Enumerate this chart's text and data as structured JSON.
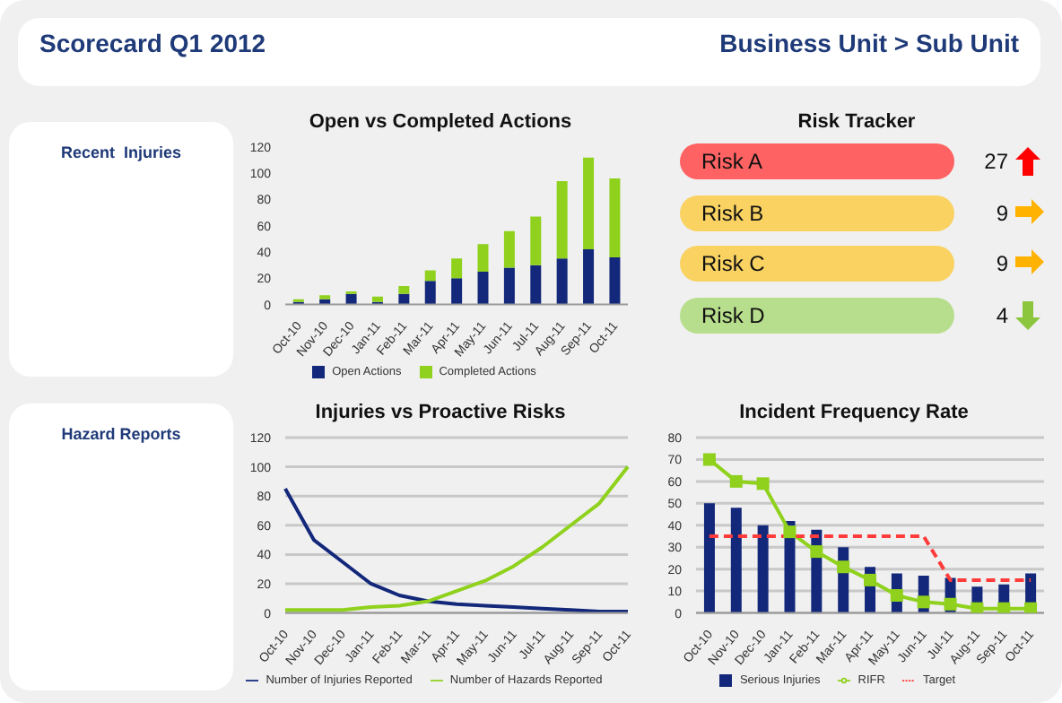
{
  "chart_data": [
    {
      "type": "other",
      "title": "Scorecard Q1 2012",
      "subtitle": "Business Unit > Sub Unit"
    },
    {
      "type": "other",
      "title": "Recent  Injuries"
    },
    {
      "type": "bar",
      "title": "Open vs Completed Actions",
      "stacked": true,
      "legend": "bottom",
      "categories": [
        "Oct-10",
        "Nov-10",
        "Dec-10",
        "Jan-11",
        "Feb-11",
        "Mar-11",
        "Apr-11",
        "May-11",
        "Jun-11",
        "Jul-11",
        "Aug-11",
        "Sep-11",
        "Oct-11"
      ],
      "ylim": [
        0,
        120
      ],
      "yticks": [
        0,
        20,
        40,
        60,
        80,
        100,
        120
      ],
      "series": [
        {
          "name": "Open Actions",
          "color": "#13287a",
          "values": [
            2,
            4,
            8,
            2,
            8,
            18,
            20,
            25,
            28,
            30,
            35,
            42,
            36
          ]
        },
        {
          "name": "Completed Actions",
          "color": "#8fd11c",
          "values": [
            2,
            3,
            2,
            4,
            6,
            8,
            15,
            21,
            28,
            37,
            59,
            70,
            60
          ]
        }
      ]
    },
    {
      "type": "other",
      "title": "Risk Tracker",
      "categories": [
        "Risk A",
        "Risk B",
        "Risk C",
        "Risk D"
      ],
      "values": [
        27,
        9,
        9,
        4
      ],
      "data_labels": true,
      "colors": [
        "#ff6262",
        "#f9d262",
        "#f9d262",
        "#b7de8c"
      ]
    },
    {
      "type": "other",
      "title": "Hazard Reports"
    },
    {
      "type": "line",
      "title": "Injuries vs Proactive Risks",
      "legend": "bottom",
      "grid": "y",
      "marker": "none",
      "categories": [
        "Oct-10",
        "Nov-10",
        "Dec-10",
        "Jan-11",
        "Feb-11",
        "Mar-11",
        "Apr-11",
        "May-11",
        "Jun-11",
        "Jul-11",
        "Aug-11",
        "Sep-11",
        "Oct-11"
      ],
      "ylim": [
        0,
        120
      ],
      "yticks": [
        0,
        20,
        40,
        60,
        80,
        100,
        120
      ],
      "series": [
        {
          "name": "Number of Injuries Reported",
          "color": "#13287a",
          "values": [
            85,
            50,
            35,
            20,
            12,
            8,
            6,
            5,
            4,
            3,
            2,
            1,
            1
          ]
        },
        {
          "name": "Number of Hazards Reported",
          "color": "#8fd11c",
          "values": [
            2,
            2,
            2,
            4,
            5,
            8,
            15,
            22,
            32,
            45,
            60,
            75,
            100
          ]
        }
      ]
    },
    {
      "type": "bar",
      "title": "Incident Frequency Rate",
      "legend": "bottom",
      "grid": "y",
      "categories": [
        "Oct-10",
        "Nov-10",
        "Dec-10",
        "Jan-11",
        "Feb-11",
        "Mar-11",
        "Apr-11",
        "May-11",
        "Jun-11",
        "Jul-11",
        "Aug-11",
        "Sep-11",
        "Oct-11"
      ],
      "ylim": [
        0,
        80
      ],
      "yticks": [
        0,
        10,
        20,
        30,
        40,
        50,
        60,
        70,
        80
      ],
      "series": [
        {
          "name": "Serious Injuries",
          "color": "#13287a",
          "values": [
            50,
            48,
            40,
            42,
            38,
            30,
            21,
            18,
            17,
            16,
            12,
            13,
            18
          ]
        },
        {
          "name": "RIFR",
          "type": "line",
          "marker": "square",
          "color": "#8fd11c",
          "values": [
            70,
            60,
            59,
            37,
            28,
            21,
            15,
            8,
            5,
            4,
            2,
            2,
            2
          ]
        },
        {
          "name": "Target",
          "type": "line",
          "marker": "none",
          "line_style": "dashed",
          "color": "#ff3b3b",
          "values": [
            35,
            35,
            35,
            35,
            35,
            35,
            35,
            35,
            35,
            15,
            15,
            15,
            15
          ]
        }
      ]
    }
  ]
}
